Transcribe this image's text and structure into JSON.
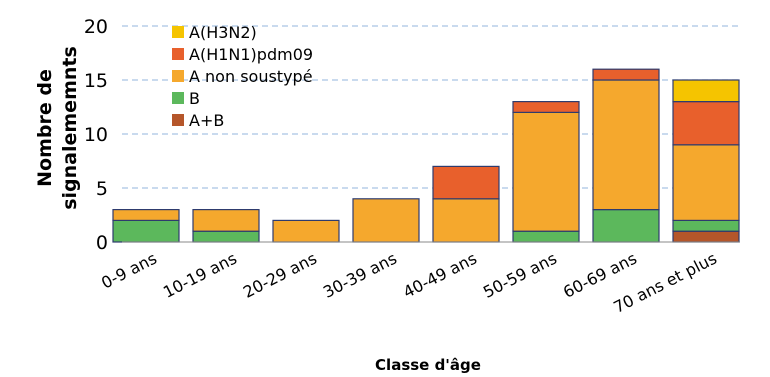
{
  "chart_data": {
    "type": "bar",
    "stacked": true,
    "categories": [
      "0-9 ans",
      "10-19 ans",
      "20-29 ans",
      "30-39 ans",
      "40-49 ans",
      "50-59 ans",
      "60-69 ans",
      "70 ans et plus"
    ],
    "series": [
      {
        "name": "A+B",
        "color": "#b5562a",
        "values": [
          0,
          0,
          0,
          0,
          0,
          0,
          0,
          1
        ]
      },
      {
        "name": "B",
        "color": "#5cb85c",
        "values": [
          2,
          1,
          0,
          0,
          0,
          1,
          3,
          1
        ]
      },
      {
        "name": "A non soustypé",
        "color": "#f5a82d",
        "values": [
          1,
          2,
          2,
          4,
          4,
          11,
          12,
          7
        ]
      },
      {
        "name": "A(H1N1)pdm09",
        "color": "#e8602c",
        "values": [
          0,
          0,
          0,
          0,
          3,
          1,
          1,
          4
        ]
      },
      {
        "name": "A(H3N2)",
        "color": "#f5c400",
        "values": [
          0,
          0,
          0,
          0,
          0,
          0,
          0,
          2
        ]
      }
    ],
    "legend_order": [
      "A(H3N2)",
      "A(H1N1)pdm09",
      "A non soustypé",
      "B",
      "A+B"
    ],
    "xlabel": "Classe d'âge",
    "ylabel_line1": "Nombre de",
    "ylabel_line2": "signalememnts",
    "ylim": [
      0,
      20
    ],
    "yticks": [
      0,
      5,
      10,
      15,
      20
    ],
    "grid": true,
    "legend_position": "top-left"
  }
}
